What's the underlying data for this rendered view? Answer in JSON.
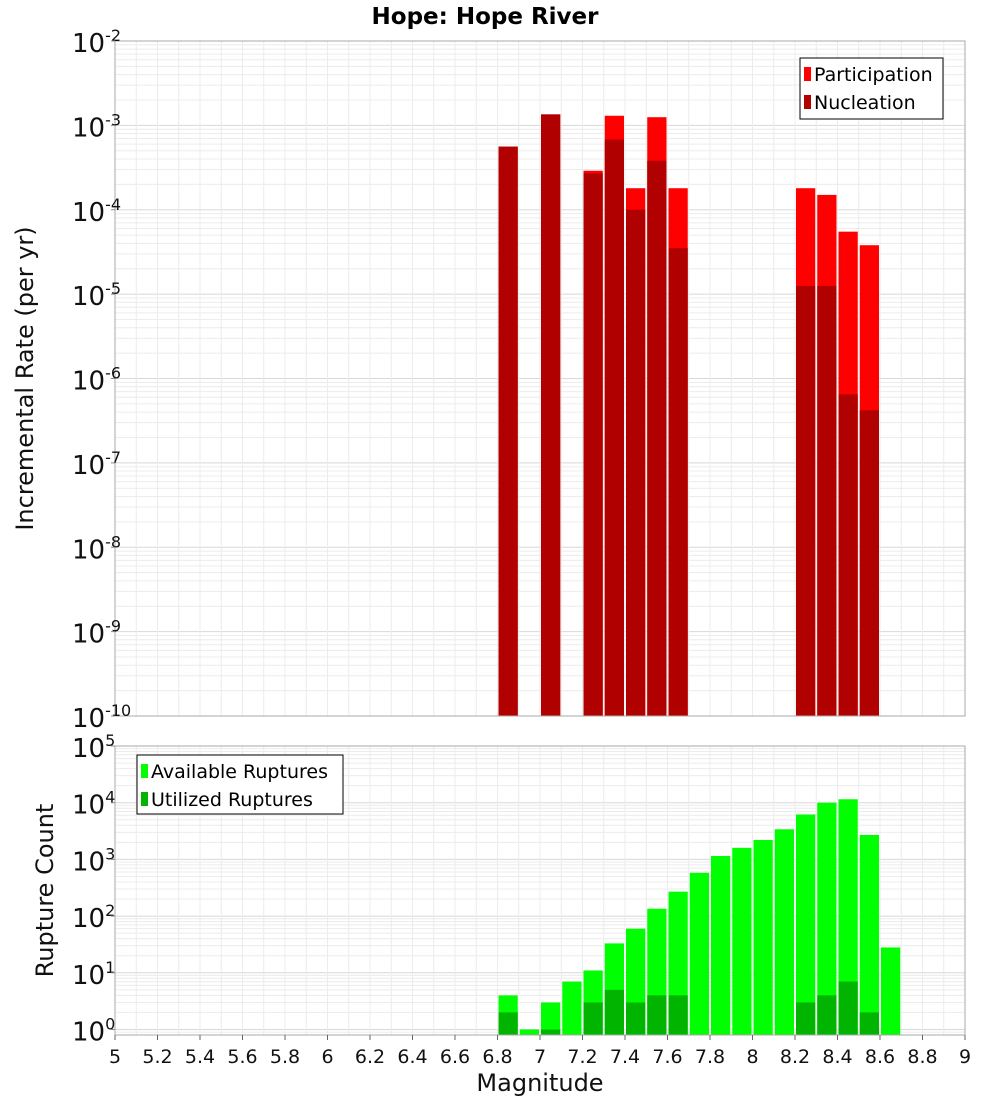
{
  "title": "Hope: Hope River",
  "xlabel": "Magnitude",
  "chart_data": [
    {
      "type": "bar",
      "ylabel": "Incremental Rate (per yr)",
      "yscale": "log",
      "ylim": [
        1e-10,
        0.01
      ],
      "xlim": [
        5,
        9
      ],
      "grid": true,
      "legend_position": "top-right",
      "bar_width": 0.1,
      "x_ticks": [
        "5",
        "5.2",
        "5.4",
        "5.6",
        "5.8",
        "6",
        "6.2",
        "6.4",
        "6.6",
        "6.8",
        "7",
        "7.2",
        "7.4",
        "7.6",
        "7.8",
        "8",
        "8.2",
        "8.4",
        "8.6",
        "8.8",
        "9"
      ],
      "y_tick_exponents": [
        "-2",
        "-3",
        "-4",
        "-5",
        "-6",
        "-7",
        "-8",
        "-9",
        "-10"
      ],
      "series": [
        {
          "name": "Participation",
          "color": "#ff0000",
          "points": [
            {
              "x": 6.85,
              "y": 0.00056
            },
            {
              "x": 7.05,
              "y": 0.00135
            },
            {
              "x": 7.25,
              "y": 0.00029
            },
            {
              "x": 7.35,
              "y": 0.0013
            },
            {
              "x": 7.45,
              "y": 0.00018
            },
            {
              "x": 7.55,
              "y": 0.00125
            },
            {
              "x": 7.65,
              "y": 0.00018
            },
            {
              "x": 8.25,
              "y": 0.00018
            },
            {
              "x": 8.35,
              "y": 0.00015
            },
            {
              "x": 8.45,
              "y": 5.5e-05
            },
            {
              "x": 8.55,
              "y": 3.8e-05
            }
          ]
        },
        {
          "name": "Nucleation",
          "color": "#b00000",
          "points": [
            {
              "x": 6.85,
              "y": 0.00056
            },
            {
              "x": 7.05,
              "y": 0.00135
            },
            {
              "x": 7.25,
              "y": 0.00027
            },
            {
              "x": 7.35,
              "y": 0.00068
            },
            {
              "x": 7.45,
              "y": 0.0001
            },
            {
              "x": 7.55,
              "y": 0.00038
            },
            {
              "x": 7.65,
              "y": 3.5e-05
            },
            {
              "x": 8.25,
              "y": 1.25e-05
            },
            {
              "x": 8.35,
              "y": 1.25e-05
            },
            {
              "x": 8.45,
              "y": 6.5e-07
            },
            {
              "x": 8.55,
              "y": 4.2e-07
            }
          ]
        }
      ]
    },
    {
      "type": "bar",
      "ylabel": "Rupture Count",
      "yscale": "log",
      "ylim": [
        0.8,
        100000
      ],
      "xlim": [
        5,
        9
      ],
      "grid": true,
      "legend_position": "top-left",
      "bar_width": 0.1,
      "x_ticks": [
        "5",
        "5.2",
        "5.4",
        "5.6",
        "5.8",
        "6",
        "6.2",
        "6.4",
        "6.6",
        "6.8",
        "7",
        "7.2",
        "7.4",
        "7.6",
        "7.8",
        "8",
        "8.2",
        "8.4",
        "8.6",
        "8.8",
        "9"
      ],
      "y_tick_exponents": [
        "0",
        "1",
        "2",
        "3",
        "4",
        "5"
      ],
      "series": [
        {
          "name": "Available Ruptures",
          "color": "#00ff00",
          "points": [
            {
              "x": 6.85,
              "y": 4
            },
            {
              "x": 6.95,
              "y": 1
            },
            {
              "x": 7.05,
              "y": 3
            },
            {
              "x": 7.15,
              "y": 7
            },
            {
              "x": 7.25,
              "y": 11
            },
            {
              "x": 7.35,
              "y": 33
            },
            {
              "x": 7.45,
              "y": 60
            },
            {
              "x": 7.55,
              "y": 135
            },
            {
              "x": 7.65,
              "y": 270
            },
            {
              "x": 7.75,
              "y": 580
            },
            {
              "x": 7.85,
              "y": 1150
            },
            {
              "x": 7.95,
              "y": 1600
            },
            {
              "x": 8.05,
              "y": 2200
            },
            {
              "x": 8.15,
              "y": 3400
            },
            {
              "x": 8.25,
              "y": 6200
            },
            {
              "x": 8.35,
              "y": 10000
            },
            {
              "x": 8.45,
              "y": 11500
            },
            {
              "x": 8.55,
              "y": 2700
            },
            {
              "x": 8.65,
              "y": 28
            }
          ]
        },
        {
          "name": "Utilized Ruptures",
          "color": "#00b400",
          "points": [
            {
              "x": 6.85,
              "y": 2
            },
            {
              "x": 7.05,
              "y": 1
            },
            {
              "x": 7.25,
              "y": 3
            },
            {
              "x": 7.35,
              "y": 5
            },
            {
              "x": 7.45,
              "y": 3
            },
            {
              "x": 7.55,
              "y": 4
            },
            {
              "x": 7.65,
              "y": 4
            },
            {
              "x": 8.25,
              "y": 3
            },
            {
              "x": 8.35,
              "y": 4
            },
            {
              "x": 8.45,
              "y": 7
            },
            {
              "x": 8.55,
              "y": 2
            }
          ]
        }
      ]
    }
  ]
}
